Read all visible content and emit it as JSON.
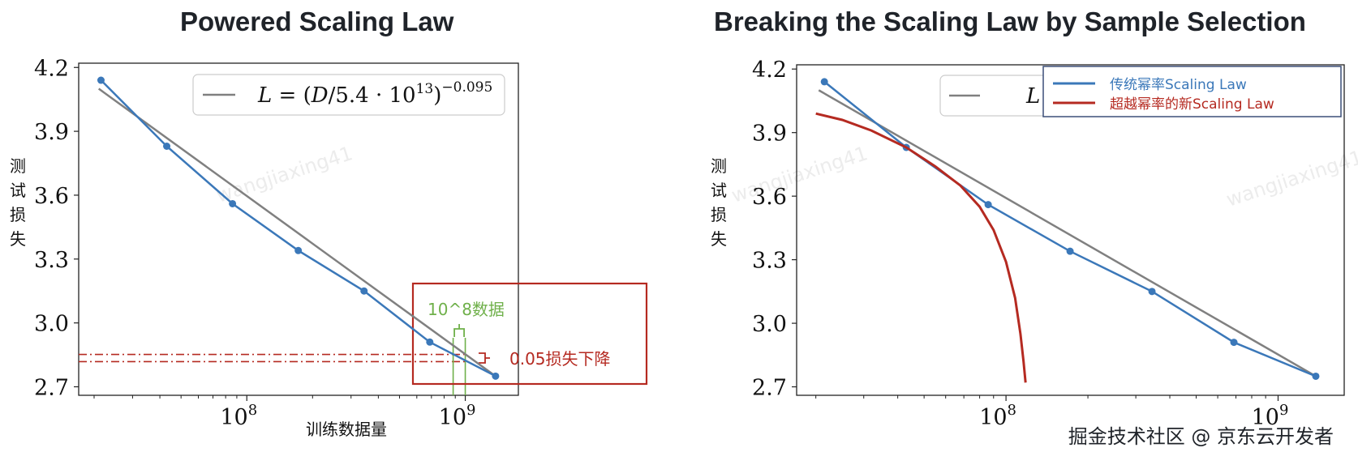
{
  "footer": {
    "watermark": "掘金技术社区 @ 京东云开发者"
  },
  "chart_data": [
    {
      "type": "line",
      "title": "Powered Scaling Law",
      "xlabel": "训练数据量",
      "ylabel": "测试损失",
      "xscale": "log",
      "xlim": [
        17000000.0,
        1750000000.0
      ],
      "ylim": [
        2.66,
        4.22
      ],
      "yticks": [
        "4.2",
        "3.9",
        "3.6",
        "3.3",
        "3.0",
        "2.7"
      ],
      "xtick_labels": [
        {
          "x": 100000000.0,
          "base": "10",
          "exp": "8"
        },
        {
          "x": 1000000000.0,
          "base": "10",
          "exp": "9"
        }
      ],
      "legend": {
        "position": "top-right",
        "formula": "L = (D/5.4 · 10^13)^(−0.095)"
      },
      "series": [
        {
          "name": "observed",
          "color": "#3b78b9",
          "x": [
            21500000.0,
            43000000.0,
            86000000.0,
            172000000.0,
            344000000.0,
            688000000.0,
            1376000000.0
          ],
          "y": [
            4.14,
            3.83,
            3.56,
            3.34,
            3.15,
            2.91,
            2.75
          ]
        },
        {
          "name": "fit",
          "color": "#808080",
          "formula": "power-law fit"
        }
      ],
      "annotations": {
        "green_label": "10^8数据",
        "red_label": "0.05损失下降",
        "red_lines_y": [
          2.852,
          2.818
        ],
        "green_lines_x": [
          880000000.0,
          1000000000.0
        ]
      },
      "watermark_text": "wangjiaxing41"
    },
    {
      "type": "line",
      "title": "Breaking the Scaling Law by Sample Selection",
      "xlabel": "",
      "ylabel": "测试损失",
      "xscale": "log",
      "xlim": [
        17000000.0,
        1750000000.0
      ],
      "ylim": [
        2.66,
        4.22
      ],
      "yticks": [
        "4.2",
        "3.9",
        "3.6",
        "3.3",
        "3.0",
        "2.7"
      ],
      "xtick_labels": [
        {
          "x": 100000000.0,
          "base": "10",
          "exp": "8"
        },
        {
          "x": 1000000000.0,
          "base": "10",
          "exp": "9"
        }
      ],
      "legend": {
        "position": "top-right",
        "entries": [
          {
            "label": "传统幂率Scaling Law",
            "color": "#3b78b9"
          },
          {
            "label": "超越幂率的新Scaling Law",
            "color": "#b52a21"
          }
        ],
        "covered_text": "L"
      },
      "series": [
        {
          "name": "传统幂率Scaling Law",
          "color": "#3b78b9",
          "x": [
            21500000.0,
            43000000.0,
            86000000.0,
            172000000.0,
            344000000.0,
            688000000.0,
            1376000000.0
          ],
          "y": [
            4.14,
            3.83,
            3.56,
            3.34,
            3.15,
            2.91,
            2.75
          ]
        },
        {
          "name": "超越幂率的新Scaling Law",
          "color": "#b52a21",
          "x": [
            20000000.0,
            25000000.0,
            32000000.0,
            43000000.0,
            55000000.0,
            68000000.0,
            80000000.0,
            90000000.0,
            100000000.0,
            108000000.0,
            113000000.0,
            116000000.0,
            118000000.0
          ],
          "y": [
            3.99,
            3.96,
            3.91,
            3.83,
            3.74,
            3.65,
            3.55,
            3.44,
            3.29,
            3.12,
            2.95,
            2.82,
            2.72
          ]
        },
        {
          "name": "fit",
          "color": "#808080",
          "formula": "power-law fit"
        }
      ],
      "watermark_text": "wangjiaxing41"
    }
  ]
}
